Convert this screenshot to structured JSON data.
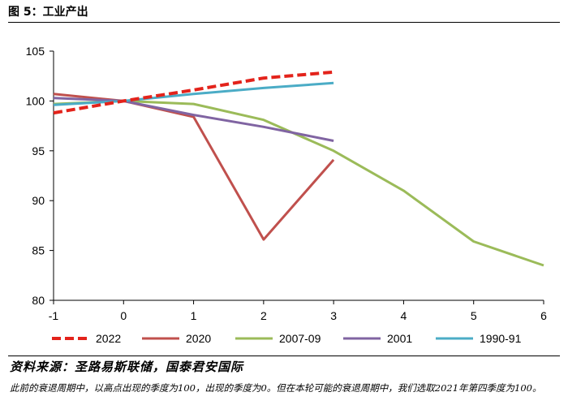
{
  "figure": {
    "title": "图 5：工业产出",
    "source": "资料来源：圣路易斯联储，国泰君安国际",
    "note": "此前的衰退周期中，以高点出现的季度为100，出现的季度为0。但在本轮可能的衰退周期中，我们选取2021年第四季度为100。"
  },
  "chart_data": {
    "type": "line",
    "title": "",
    "xlabel": "",
    "ylabel": "",
    "xlim": [
      -1,
      6
    ],
    "ylim": [
      80,
      105
    ],
    "x_ticks": [
      "-1",
      "0",
      "1",
      "2",
      "3",
      "4",
      "5",
      "6"
    ],
    "y_ticks": [
      "80",
      "85",
      "90",
      "95",
      "100",
      "105"
    ],
    "grid": false,
    "legend_position": "bottom",
    "series": [
      {
        "name": "2022",
        "color": "#e3231b",
        "style": "dashed",
        "x": [
          -1,
          0,
          1,
          2,
          3
        ],
        "y": [
          98.8,
          100.0,
          101.1,
          102.3,
          102.9
        ]
      },
      {
        "name": "2020",
        "color": "#c0504d",
        "style": "solid",
        "x": [
          -1,
          0,
          1,
          2,
          3
        ],
        "y": [
          100.7,
          100.0,
          98.4,
          86.1,
          94.1
        ]
      },
      {
        "name": "2007-09",
        "color": "#9bbb59",
        "style": "solid",
        "x": [
          -1,
          0,
          1,
          2,
          3,
          4,
          5,
          6
        ],
        "y": [
          99.7,
          100.0,
          99.7,
          98.1,
          95.0,
          91.0,
          85.9,
          83.5
        ]
      },
      {
        "name": "2001",
        "color": "#8064a2",
        "style": "solid",
        "x": [
          -1,
          0,
          1,
          2,
          3
        ],
        "y": [
          100.3,
          100.0,
          98.6,
          97.4,
          96.0
        ]
      },
      {
        "name": "1990-91",
        "color": "#4bacc6",
        "style": "solid",
        "x": [
          -1,
          0,
          1,
          2,
          3
        ],
        "y": [
          99.6,
          100.0,
          100.7,
          101.3,
          101.8
        ]
      }
    ]
  }
}
